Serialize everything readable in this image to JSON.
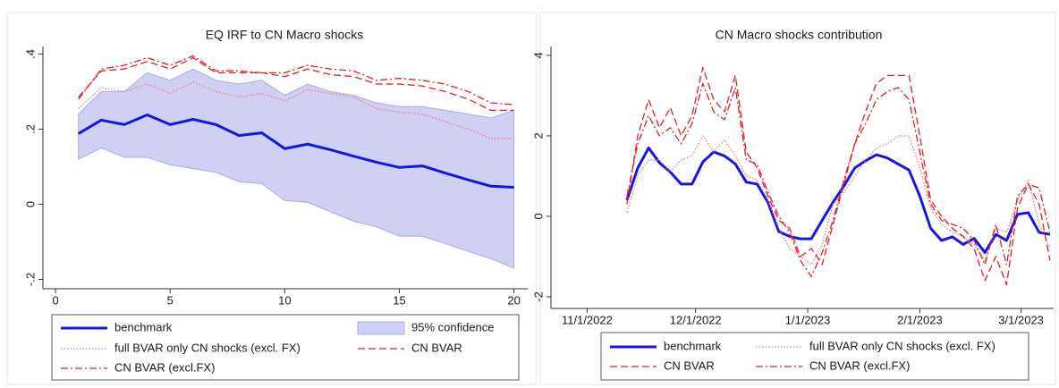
{
  "chart_data": [
    {
      "type": "line",
      "title": "EQ IRF to CN Macro shocks",
      "x": [
        1,
        2,
        3,
        4,
        5,
        6,
        7,
        8,
        9,
        10,
        11,
        12,
        13,
        14,
        15,
        16,
        17,
        18,
        19,
        20
      ],
      "xlim": [
        -0.55,
        20.6
      ],
      "xticks": [
        0,
        5,
        10,
        15,
        20
      ],
      "ylim": [
        -0.225,
        0.42
      ],
      "yticks": [
        {
          "value": -0.2,
          "label": "-.2"
        },
        0,
        {
          "value": 0.2,
          "label": ".2"
        },
        {
          "value": 0.4,
          "label": ".4"
        }
      ],
      "bands": [
        {
          "name": "95% confidence",
          "color": "#cfd0f3",
          "edge_color": "#a9abe6",
          "upper": [
            0.24,
            0.3,
            0.3,
            0.35,
            0.33,
            0.36,
            0.33,
            0.32,
            0.33,
            0.29,
            0.32,
            0.3,
            0.29,
            0.27,
            0.26,
            0.26,
            0.25,
            0.24,
            0.23,
            0.25
          ],
          "lower": [
            0.12,
            0.15,
            0.125,
            0.125,
            0.105,
            0.095,
            0.085,
            0.06,
            0.055,
            0.01,
            0.005,
            -0.02,
            -0.045,
            -0.06,
            -0.085,
            -0.085,
            -0.105,
            -0.125,
            -0.145,
            -0.17
          ]
        }
      ],
      "series": [
        {
          "name": "benchmark",
          "color": "#1515e6",
          "line_style": "solid",
          "values": [
            0.188,
            0.224,
            0.212,
            0.238,
            0.212,
            0.226,
            0.212,
            0.183,
            0.19,
            0.148,
            0.16,
            0.145,
            0.128,
            0.112,
            0.098,
            0.102,
            0.083,
            0.065,
            0.048,
            0.045
          ]
        },
        {
          "name": "full BVAR only CN shocks (excl. FX)",
          "color": "#f07a7a",
          "line_style": "dotted",
          "values": [
            0.255,
            0.31,
            0.3,
            0.32,
            0.295,
            0.325,
            0.3,
            0.285,
            0.295,
            0.275,
            0.305,
            0.295,
            0.285,
            0.255,
            0.245,
            0.24,
            0.22,
            0.2,
            0.175,
            0.175
          ]
        },
        {
          "name": "CN BVAR",
          "color": "#e41e26",
          "line_style": "dashed",
          "values": [
            0.285,
            0.355,
            0.36,
            0.38,
            0.36,
            0.39,
            0.35,
            0.35,
            0.35,
            0.34,
            0.36,
            0.345,
            0.34,
            0.32,
            0.32,
            0.315,
            0.3,
            0.28,
            0.25,
            0.25
          ]
        },
        {
          "name": "CN BVAR (excl.FX)",
          "color": "#e41e26",
          "line_style": "dashdot",
          "values": [
            0.28,
            0.36,
            0.37,
            0.39,
            0.37,
            0.395,
            0.355,
            0.355,
            0.35,
            0.35,
            0.37,
            0.36,
            0.355,
            0.33,
            0.335,
            0.33,
            0.32,
            0.3,
            0.27,
            0.265
          ]
        }
      ]
    },
    {
      "type": "line",
      "title": "CN Macro shocks contribution",
      "x": [
        "11/12/2022",
        "11/15/2022",
        "11/18/2022",
        "11/21/2022",
        "11/24/2022",
        "11/27/2022",
        "11/30/2022",
        "12/3/2022",
        "12/6/2022",
        "12/9/2022",
        "12/12/2022",
        "12/15/2022",
        "12/18/2022",
        "12/21/2022",
        "12/24/2022",
        "12/27/2022",
        "12/30/2022",
        "1/2/2023",
        "1/5/2023",
        "1/8/2023",
        "1/11/2023",
        "1/14/2023",
        "1/17/2023",
        "1/20/2023",
        "1/23/2023",
        "1/26/2023",
        "1/29/2023",
        "2/1/2023",
        "2/4/2023",
        "2/7/2023",
        "2/10/2023",
        "2/13/2023",
        "2/16/2023",
        "2/19/2023",
        "2/22/2023",
        "2/25/2023",
        "2/28/2023",
        "3/3/2023",
        "3/6/2023",
        "3/9/2023"
      ],
      "xlim": [
        "10/22/2022",
        "3/10/2023"
      ],
      "xticks": [
        "11/1/2022",
        "12/1/2022",
        "1/1/2023",
        "2/1/2023",
        "3/1/2023"
      ],
      "ylim": [
        -2.29,
        4.22
      ],
      "yticks": [
        -2,
        0,
        2,
        4
      ],
      "series": [
        {
          "name": "benchmark",
          "color": "#1515e6",
          "line_style": "solid",
          "values": [
            0.4,
            1.2,
            1.7,
            1.33,
            1.1,
            0.8,
            0.8,
            1.35,
            1.6,
            1.5,
            1.3,
            0.85,
            0.8,
            0.35,
            -0.38,
            -0.5,
            -0.56,
            -0.56,
            -0.1,
            0.35,
            0.75,
            1.2,
            1.38,
            1.53,
            1.45,
            1.3,
            1.15,
            0.5,
            -0.3,
            -0.6,
            -0.51,
            -0.7,
            -0.55,
            -0.9,
            -0.45,
            -0.6,
            0.05,
            0.09,
            -0.4,
            -0.45
          ]
        },
        {
          "name": "full BVAR only CN shocks (excl. FX)",
          "color": "#f07a7a",
          "line_style": "dotted",
          "values": [
            0.1,
            1.0,
            1.4,
            1.4,
            1.1,
            1.4,
            1.5,
            2.0,
            1.6,
            1.9,
            1.5,
            1.0,
            0.9,
            0.4,
            -0.3,
            -0.8,
            -1.0,
            -1.2,
            -0.7,
            0.3,
            0.6,
            1.0,
            1.4,
            1.7,
            1.8,
            2.0,
            2.0,
            1.2,
            0.2,
            -0.2,
            -0.4,
            -0.5,
            -0.7,
            -1.1,
            -0.3,
            -0.4,
            0.4,
            0.9,
            -0.2,
            -0.8
          ]
        },
        {
          "name": "CN BVAR",
          "color": "#e41e26",
          "line_style": "dashed",
          "values": [
            0.3,
            2.0,
            2.9,
            2.2,
            2.7,
            2.0,
            2.5,
            3.7,
            2.9,
            2.6,
            3.5,
            1.6,
            1.2,
            0.5,
            -0.1,
            -0.3,
            -1.0,
            -0.8,
            -1.2,
            -0.2,
            0.8,
            1.8,
            2.6,
            3.3,
            3.5,
            3.5,
            3.5,
            2.0,
            0.4,
            0.0,
            -0.3,
            -0.5,
            -0.8,
            -1.6,
            -1.0,
            -1.7,
            0.2,
            0.8,
            0.3,
            -1.1
          ]
        },
        {
          "name": "CN BVAR (excl.FX)",
          "color": "#e41e26",
          "line_style": "dashdot",
          "values": [
            0.5,
            1.8,
            2.5,
            2.0,
            2.2,
            1.8,
            2.3,
            3.3,
            2.6,
            2.4,
            3.2,
            1.4,
            1.3,
            0.6,
            0.0,
            -0.4,
            -1.1,
            -1.5,
            -0.9,
            -0.1,
            0.9,
            1.8,
            2.3,
            2.9,
            3.1,
            3.2,
            2.9,
            1.6,
            0.3,
            -0.1,
            -0.2,
            -0.3,
            -0.6,
            -1.2,
            -0.2,
            -1.2,
            0.5,
            0.8,
            0.7,
            -0.4
          ]
        }
      ]
    }
  ]
}
